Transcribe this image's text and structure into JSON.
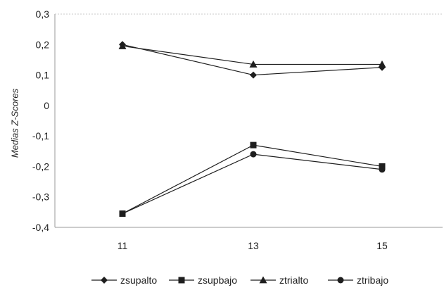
{
  "chart_data": {
    "type": "line",
    "x": [
      11,
      13,
      15
    ],
    "x_tick_labels": [
      "11",
      "13",
      "15"
    ],
    "y_tick_labels": [
      "0,3",
      "0,2",
      "0,1",
      "0",
      "-0,1",
      "-0,2",
      "-0,3",
      "-0,4"
    ],
    "ylim": [
      -0.4,
      0.3
    ],
    "ylabel": "Medias Z-Scores",
    "xlabel": "",
    "title": "",
    "grid": false,
    "legend_position": "bottom",
    "series": [
      {
        "name": "zsupalto",
        "marker": "diamond",
        "values": [
          0.2,
          0.1,
          0.125
        ]
      },
      {
        "name": "zsupbajo",
        "marker": "square",
        "values": [
          -0.355,
          -0.13,
          -0.2
        ]
      },
      {
        "name": "ztrialto",
        "marker": "triangle",
        "values": [
          0.195,
          0.135,
          0.135
        ]
      },
      {
        "name": "ztribajo",
        "marker": "circle",
        "values": [
          -0.355,
          -0.16,
          -0.21
        ]
      }
    ],
    "line_color": "#1e1e1e",
    "axis_color": "#9a9a9a"
  }
}
